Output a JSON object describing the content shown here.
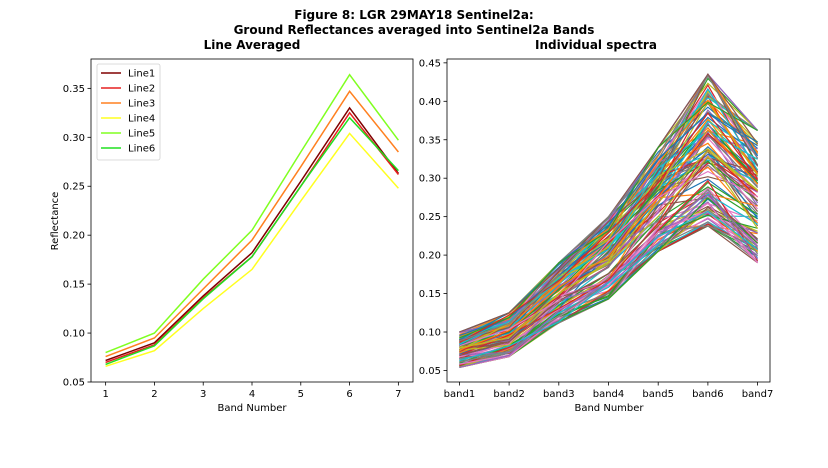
{
  "figure": {
    "title_line1": "Figure 8: LGR 29MAY18  Sentinel2a:",
    "title_line2": "Ground Reflectances averaged into Sentinel2a Bands"
  },
  "chart_data": [
    {
      "type": "line",
      "title": "Line Averaged",
      "xlabel": "Band Number",
      "ylabel": "Reflectance",
      "x": [
        1,
        2,
        3,
        4,
        5,
        6,
        7
      ],
      "xlim": [
        0.7,
        7.3
      ],
      "ylim": [
        0.05,
        0.38
      ],
      "yticks": [
        0.05,
        0.1,
        0.15,
        0.2,
        0.25,
        0.3,
        0.35
      ],
      "ytick_labels": [
        "0.05",
        "0.10",
        "0.15",
        "0.20",
        "0.25",
        "0.30",
        "0.35"
      ],
      "xticks": [
        1,
        2,
        3,
        4,
        5,
        6,
        7
      ],
      "xtick_labels": [
        "1",
        "2",
        "3",
        "4",
        "5",
        "6",
        "7"
      ],
      "legend": "top-left",
      "grid": false,
      "series": [
        {
          "name": "Line1",
          "color": "#800000",
          "values": [
            0.072,
            0.09,
            0.138,
            0.182,
            0.255,
            0.33,
            0.263
          ]
        },
        {
          "name": "Line2",
          "color": "#e62020",
          "values": [
            0.07,
            0.088,
            0.136,
            0.178,
            0.25,
            0.325,
            0.262
          ]
        },
        {
          "name": "Line3",
          "color": "#ff8020",
          "values": [
            0.076,
            0.095,
            0.145,
            0.195,
            0.27,
            0.347,
            0.285
          ]
        },
        {
          "name": "Line4",
          "color": "#ffff20",
          "values": [
            0.066,
            0.082,
            0.125,
            0.165,
            0.235,
            0.304,
            0.248
          ]
        },
        {
          "name": "Line5",
          "color": "#80ff20",
          "values": [
            0.08,
            0.1,
            0.155,
            0.205,
            0.285,
            0.364,
            0.297
          ]
        },
        {
          "name": "Line6",
          "color": "#20e020",
          "values": [
            0.068,
            0.087,
            0.135,
            0.178,
            0.25,
            0.32,
            0.266
          ]
        }
      ]
    },
    {
      "type": "line",
      "title": "Individual spectra",
      "xlabel": "Band Number",
      "ylabel": "",
      "categories": [
        "band1",
        "band2",
        "band3",
        "band4",
        "band5",
        "band6",
        "band7"
      ],
      "xlim": [
        -0.25,
        6.25
      ],
      "ylim": [
        0.035,
        0.455
      ],
      "yticks": [
        0.05,
        0.1,
        0.15,
        0.2,
        0.25,
        0.3,
        0.35,
        0.4,
        0.45
      ],
      "ytick_labels": [
        "0.05",
        "0.10",
        "0.15",
        "0.20",
        "0.25",
        "0.30",
        "0.35",
        "0.40",
        "0.45"
      ],
      "legend": "none",
      "grid": false,
      "envelope": {
        "low": [
          0.054,
          0.068,
          0.112,
          0.143,
          0.205,
          0.238,
          0.19
        ],
        "mid": [
          0.075,
          0.093,
          0.143,
          0.188,
          0.262,
          0.335,
          0.275
        ],
        "high": [
          0.1,
          0.125,
          0.19,
          0.25,
          0.34,
          0.435,
          0.362
        ]
      },
      "series_count": 120,
      "colors": [
        "#1f77b4",
        "#ff7f0e",
        "#2ca02c",
        "#d62728",
        "#9467bd",
        "#8c564b",
        "#e377c2",
        "#7f7f7f",
        "#bcbd22",
        "#17becf"
      ]
    }
  ]
}
